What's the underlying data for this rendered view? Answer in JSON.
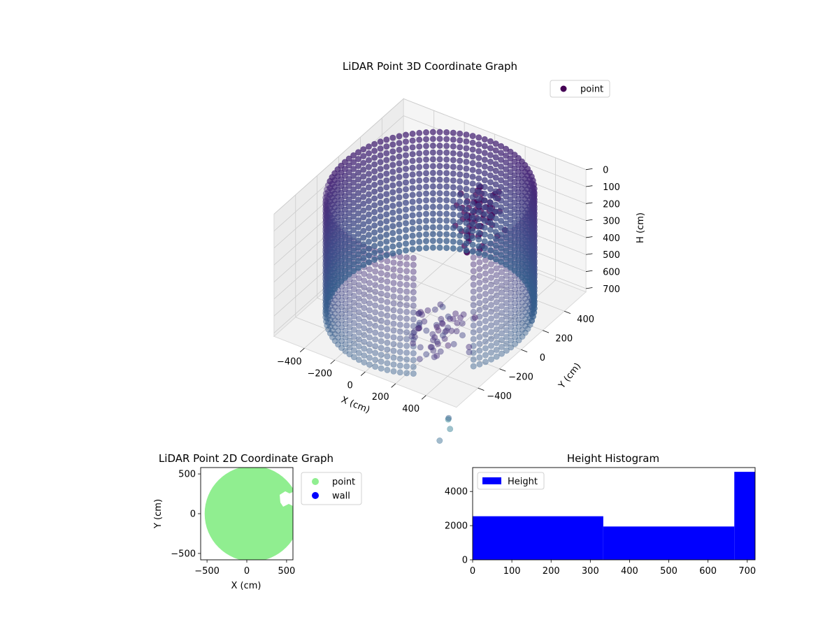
{
  "chart_data": [
    {
      "id": "3d",
      "type": "scatter",
      "title": "LiDAR Point 3D Coordinate Graph",
      "xlabel": "X (cm)",
      "ylabel": "Y (cm)",
      "zlabel": "H (cm)",
      "x_ticks": [
        -400,
        -200,
        0,
        200,
        400
      ],
      "y_ticks": [
        -400,
        -200,
        0,
        200,
        400
      ],
      "z_ticks": [
        0,
        100,
        200,
        300,
        400,
        500,
        600,
        700
      ],
      "x_tick_labels": [
        "−400",
        "−200",
        "0",
        "200",
        "400"
      ],
      "y_tick_labels": [
        "−400",
        "−200",
        "0",
        "200",
        "400"
      ],
      "z_tick_labels": [
        "0",
        "100",
        "200",
        "300",
        "400",
        "500",
        "600",
        "700"
      ],
      "xlim": [
        -600,
        600
      ],
      "ylim": [
        -600,
        600
      ],
      "zlim": [
        0,
        720
      ],
      "z_inverted": true,
      "legend": [
        "point"
      ],
      "legend_position": "top-right",
      "colormap": "viridis",
      "series": [
        {
          "name": "point",
          "shape": "cylindrical wall",
          "radius_cm": 560,
          "height_range": [
            0,
            720
          ],
          "rings_at_h": [
            20,
            60,
            100,
            140,
            180,
            220,
            260,
            300,
            340,
            380,
            420,
            460,
            500,
            540,
            580,
            620,
            660,
            700
          ]
        }
      ],
      "outliers": [
        {
          "x": 620,
          "y": -700,
          "h": 720
        },
        {
          "x": 660,
          "y": -760,
          "h": 680
        },
        {
          "x": 700,
          "y": -800,
          "h": 700
        },
        {
          "x": 660,
          "y": -840,
          "h": 760
        }
      ]
    },
    {
      "id": "2d",
      "type": "scatter",
      "title": "LiDAR Point 2D Coordinate Graph",
      "xlabel": "X (cm)",
      "ylabel": "Y (cm)",
      "x_ticks": [
        -500,
        0,
        500
      ],
      "y_ticks": [
        -500,
        0,
        500
      ],
      "x_tick_labels": [
        "−500",
        "0",
        "500"
      ],
      "y_tick_labels": [
        "−500",
        "0",
        "500"
      ],
      "xlim": [
        -580,
        580
      ],
      "ylim": [
        -580,
        580
      ],
      "legend": [
        "point",
        "wall"
      ],
      "legend_position": "outside-right",
      "series": [
        {
          "name": "point",
          "color": "#90ee90",
          "shape": "filled disc",
          "radius_cm": 600
        },
        {
          "name": "wall",
          "color": "#0000ff"
        }
      ]
    },
    {
      "id": "hist",
      "type": "bar",
      "title": "Height Histogram",
      "xlabel": "",
      "ylabel": "",
      "legend": [
        "Height"
      ],
      "legend_position": "top-left",
      "color": "#0000ff",
      "bins": [
        {
          "x0": 0,
          "x1": 333,
          "count": 2550
        },
        {
          "x0": 333,
          "x1": 667,
          "count": 1950
        },
        {
          "x0": 667,
          "x1": 720,
          "count": 5150
        }
      ],
      "x_ticks": [
        0,
        100,
        200,
        300,
        400,
        500,
        600,
        700
      ],
      "y_ticks": [
        0,
        2000,
        4000
      ],
      "xlim": [
        0,
        720
      ],
      "ylim": [
        0,
        5400
      ]
    }
  ]
}
